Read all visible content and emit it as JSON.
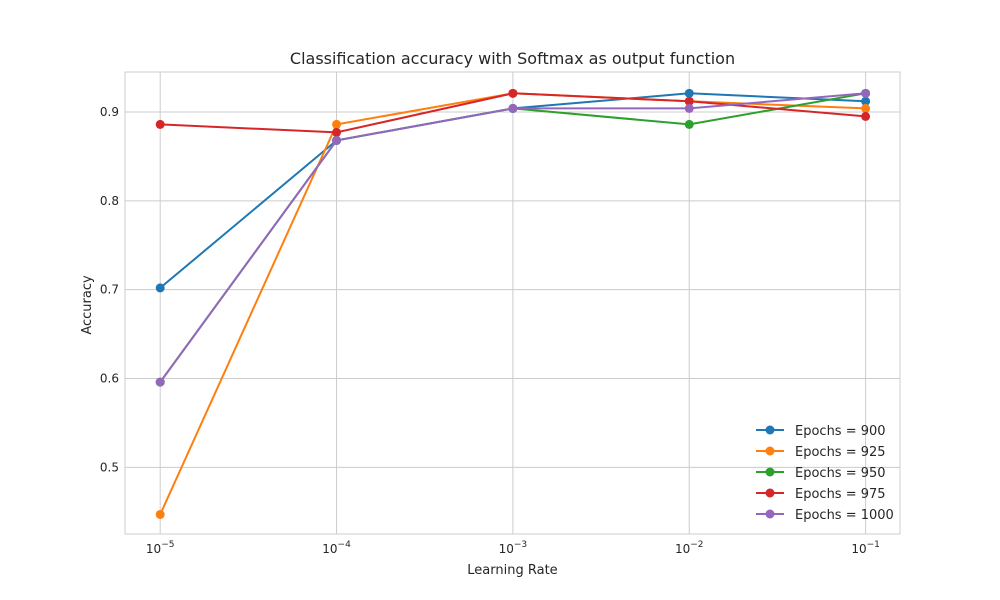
{
  "chart_data": {
    "type": "line",
    "title": "Classification accuracy with Softmax as output function",
    "xlabel": "Learning Rate",
    "ylabel": "Accuracy",
    "x_scale": "log",
    "x": [
      1e-05,
      0.0001,
      0.001,
      0.01,
      0.1
    ],
    "x_tick_labels": [
      {
        "base": "10",
        "exp": "−5"
      },
      {
        "base": "10",
        "exp": "−4"
      },
      {
        "base": "10",
        "exp": "−3"
      },
      {
        "base": "10",
        "exp": "−2"
      },
      {
        "base": "10",
        "exp": "−1"
      }
    ],
    "yticks": [
      "0.5",
      "0.6",
      "0.7",
      "0.8",
      "0.9"
    ],
    "ylim": [
      0.425,
      0.945
    ],
    "grid": true,
    "legend_position": "bottom-right",
    "series": [
      {
        "name": "Epochs = 900",
        "color": "#1f77b4",
        "values": [
          0.702,
          0.868,
          0.904,
          0.921,
          0.912
        ]
      },
      {
        "name": "Epochs = 925",
        "color": "#ff7f0e",
        "values": [
          0.447,
          0.886,
          0.921,
          0.912,
          0.904
        ]
      },
      {
        "name": "Epochs = 950",
        "color": "#2ca02c",
        "values": [
          0.596,
          0.868,
          0.904,
          0.886,
          0.921
        ]
      },
      {
        "name": "Epochs = 975",
        "color": "#d62728",
        "values": [
          0.886,
          0.877,
          0.921,
          0.912,
          0.895
        ]
      },
      {
        "name": "Epochs = 1000",
        "color": "#9467bd",
        "values": [
          0.596,
          0.868,
          0.904,
          0.904,
          0.921
        ]
      }
    ]
  }
}
